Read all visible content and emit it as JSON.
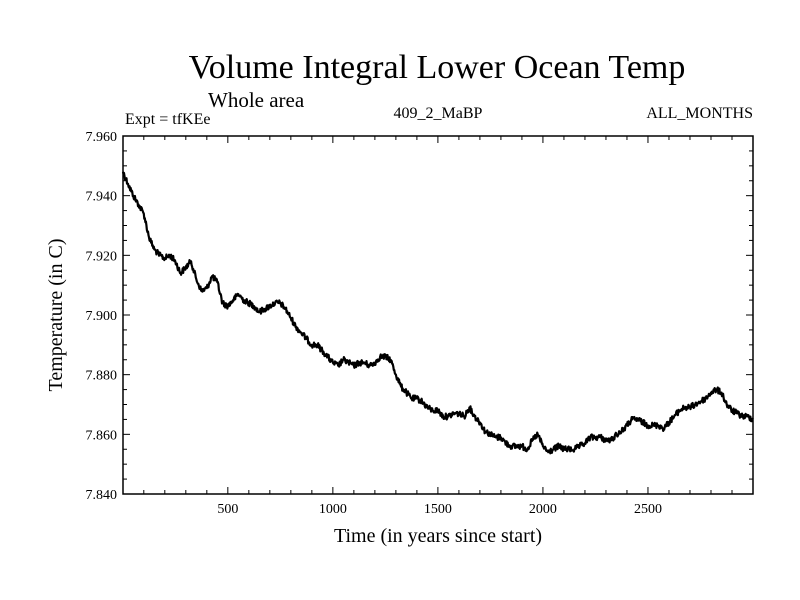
{
  "chart_data": {
    "type": "line",
    "title": "Volume Integral Lower Ocean Temp",
    "subtitle": "Whole area",
    "left_note": "Expt = tfKEe",
    "center_note": "409_2_MaBP",
    "right_note": "ALL_MONTHS",
    "xlabel": "Time (in years since start)",
    "ylabel": "Temperature (in C)",
    "xlim": [
      1,
      3000
    ],
    "ylim": [
      7.84,
      7.96
    ],
    "x_ticks": [
      500,
      1000,
      1500,
      2000,
      2500
    ],
    "y_ticks": [
      "7.840",
      "7.860",
      "7.880",
      "7.900",
      "7.920",
      "7.940",
      "7.960"
    ],
    "grid": false,
    "line_color": "#000000",
    "series": [
      {
        "x": [
          1,
          25,
          50,
          75,
          100,
          125,
          150,
          175,
          200,
          225,
          250,
          275,
          300,
          325,
          350,
          375,
          400,
          425,
          450,
          475,
          500,
          525,
          550,
          575,
          600,
          625,
          650,
          675,
          700,
          725,
          750,
          775,
          800,
          825,
          850,
          875,
          900,
          925,
          950,
          975,
          1000,
          1025,
          1050,
          1075,
          1100,
          1125,
          1150,
          1175,
          1200,
          1225,
          1250,
          1275,
          1300,
          1325,
          1350,
          1375,
          1400,
          1425,
          1450,
          1475,
          1500,
          1525,
          1550,
          1575,
          1600,
          1625,
          1650,
          1675,
          1700,
          1725,
          1750,
          1775,
          1800,
          1825,
          1850,
          1875,
          1900,
          1925,
          1950,
          1975,
          2000,
          2025,
          2050,
          2075,
          2100,
          2125,
          2150,
          2175,
          2200,
          2225,
          2250,
          2275,
          2300,
          2325,
          2350,
          2375,
          2400,
          2425,
          2450,
          2475,
          2500,
          2525,
          2550,
          2575,
          2600,
          2625,
          2650,
          2675,
          2700,
          2725,
          2750,
          2775,
          2800,
          2825,
          2850,
          2875,
          2900,
          2925,
          2950,
          2975,
          3000
        ],
        "values": [
          7.948,
          7.944,
          7.94,
          7.937,
          7.934,
          7.926,
          7.922,
          7.92,
          7.919,
          7.92,
          7.918,
          7.914,
          7.916,
          7.918,
          7.912,
          7.908,
          7.909,
          7.913,
          7.911,
          7.904,
          7.903,
          7.905,
          7.907,
          7.905,
          7.904,
          7.903,
          7.901,
          7.902,
          7.903,
          7.904,
          7.904,
          7.902,
          7.899,
          7.896,
          7.894,
          7.892,
          7.89,
          7.89,
          7.888,
          7.886,
          7.884,
          7.883,
          7.885,
          7.884,
          7.883,
          7.884,
          7.884,
          7.883,
          7.884,
          7.886,
          7.886,
          7.885,
          7.88,
          7.876,
          7.874,
          7.872,
          7.872,
          7.871,
          7.869,
          7.868,
          7.868,
          7.866,
          7.866,
          7.867,
          7.867,
          7.866,
          7.869,
          7.866,
          7.864,
          7.861,
          7.86,
          7.859,
          7.859,
          7.857,
          7.856,
          7.856,
          7.856,
          7.855,
          7.858,
          7.86,
          7.856,
          7.854,
          7.855,
          7.856,
          7.855,
          7.855,
          7.855,
          7.856,
          7.857,
          7.859,
          7.859,
          7.859,
          7.858,
          7.858,
          7.86,
          7.861,
          7.863,
          7.865,
          7.865,
          7.864,
          7.863,
          7.863,
          7.863,
          7.862,
          7.864,
          7.866,
          7.868,
          7.869,
          7.869,
          7.87,
          7.871,
          7.872,
          7.874,
          7.875,
          7.874,
          7.87,
          7.868,
          7.867,
          7.866,
          7.866,
          7.865
        ]
      }
    ]
  }
}
